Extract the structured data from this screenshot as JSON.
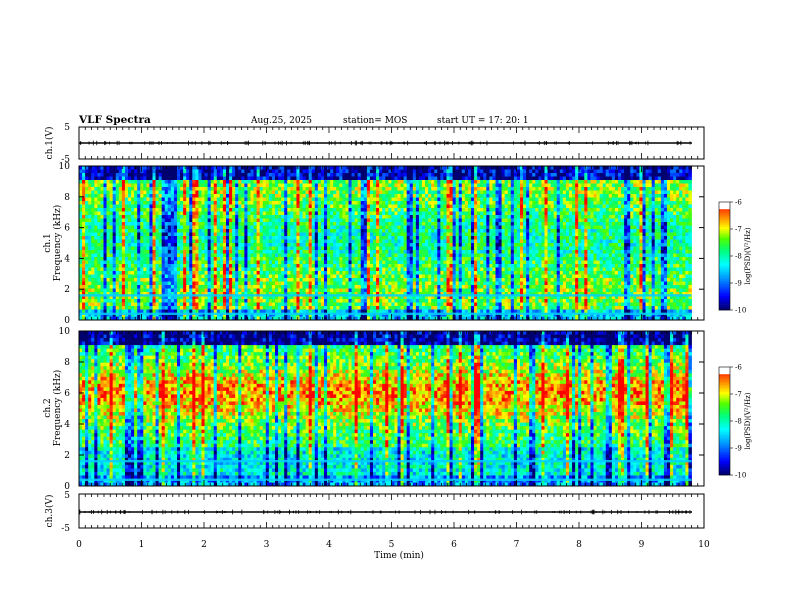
{
  "header": {
    "title": "VLF Spectra",
    "date": "Aug.25, 2025",
    "station": "station= MOS",
    "start": "start  UT =   17: 20: 1"
  },
  "chart_data": [
    {
      "type": "line",
      "name": "ch1-waveform",
      "ylabel": "ch.1(V)",
      "ylim": [
        -5,
        5
      ],
      "yticks": [
        "5",
        "-5"
      ],
      "xlim": [
        0,
        10
      ],
      "x": [
        0,
        9.8
      ],
      "y": [
        0,
        0
      ]
    },
    {
      "type": "heatmap",
      "name": "ch1-spectrogram",
      "ylabel": "ch.1\nFrequency (kHz)",
      "ylim": [
        0,
        10
      ],
      "yticks": [
        "0",
        "2",
        "4",
        "6",
        "8",
        "10"
      ],
      "xlim": [
        0,
        9.8
      ],
      "colorbar": {
        "label": "log(PSD)(V²/Hz)",
        "range": [
          -10,
          -6
        ],
        "ticks": [
          "-6",
          "-7",
          "-8",
          "-9",
          "-10"
        ]
      },
      "bands_khz": [
        0.4,
        1.6
      ]
    },
    {
      "type": "heatmap",
      "name": "ch2-spectrogram",
      "ylabel": "ch.2\nFrequency (kHz)",
      "ylim": [
        0,
        10
      ],
      "yticks": [
        "0",
        "2",
        "4",
        "6",
        "8",
        "10"
      ],
      "xlim": [
        0,
        9.8
      ],
      "colorbar": {
        "label": "log(PSD)(V²/Hz)",
        "range": [
          -10,
          -6
        ],
        "ticks": [
          "-6",
          "-7",
          "-8",
          "-9",
          "-10"
        ]
      },
      "bands_khz": [
        0.4,
        1.6
      ]
    },
    {
      "type": "line",
      "name": "ch3-waveform",
      "ylabel": "ch.3(V)",
      "ylim": [
        -5,
        5
      ],
      "yticks": [
        "5",
        "-5"
      ],
      "xlim": [
        0,
        10
      ],
      "x": [
        0,
        9.8
      ],
      "y": [
        0,
        0
      ]
    }
  ],
  "xaxis": {
    "label": "Time  (min)",
    "ticks": [
      "0",
      "1",
      "2",
      "3",
      "4",
      "5",
      "6",
      "7",
      "8",
      "9",
      "10"
    ]
  },
  "palette": [
    "#000080",
    "#0000ff",
    "#00a0ff",
    "#00ffff",
    "#00ff80",
    "#40ff00",
    "#ffff00",
    "#ff8000",
    "#ff0000",
    "#ffffff"
  ]
}
